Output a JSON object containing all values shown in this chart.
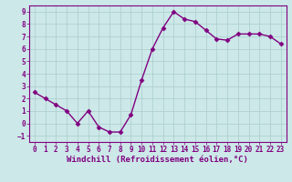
{
  "x": [
    0,
    1,
    2,
    3,
    4,
    5,
    6,
    7,
    8,
    9,
    10,
    11,
    12,
    13,
    14,
    15,
    16,
    17,
    18,
    19,
    20,
    21,
    22,
    23
  ],
  "y": [
    2.5,
    2.0,
    1.5,
    1.0,
    0.0,
    1.0,
    -0.3,
    -0.7,
    -0.7,
    0.7,
    3.5,
    6.0,
    7.7,
    9.0,
    8.4,
    8.2,
    7.5,
    6.8,
    6.7,
    7.2,
    7.2,
    7.2,
    7.0,
    6.4
  ],
  "line_color": "#800080",
  "marker": "D",
  "marker_size": 2.5,
  "bg_color": "#cce8e8",
  "grid_color": "#aacccc",
  "xlabel": "Windchill (Refroidissement éolien,°C)",
  "xlim": [
    -0.5,
    23.5
  ],
  "ylim": [
    -1.5,
    9.5
  ],
  "yticks": [
    -1,
    0,
    1,
    2,
    3,
    4,
    5,
    6,
    7,
    8,
    9
  ],
  "xticks": [
    0,
    1,
    2,
    3,
    4,
    5,
    6,
    7,
    8,
    9,
    10,
    11,
    12,
    13,
    14,
    15,
    16,
    17,
    18,
    19,
    20,
    21,
    22,
    23
  ],
  "tick_label_size": 5.5,
  "xlabel_size": 6.5,
  "spine_color": "#800080",
  "line_width": 1.0
}
